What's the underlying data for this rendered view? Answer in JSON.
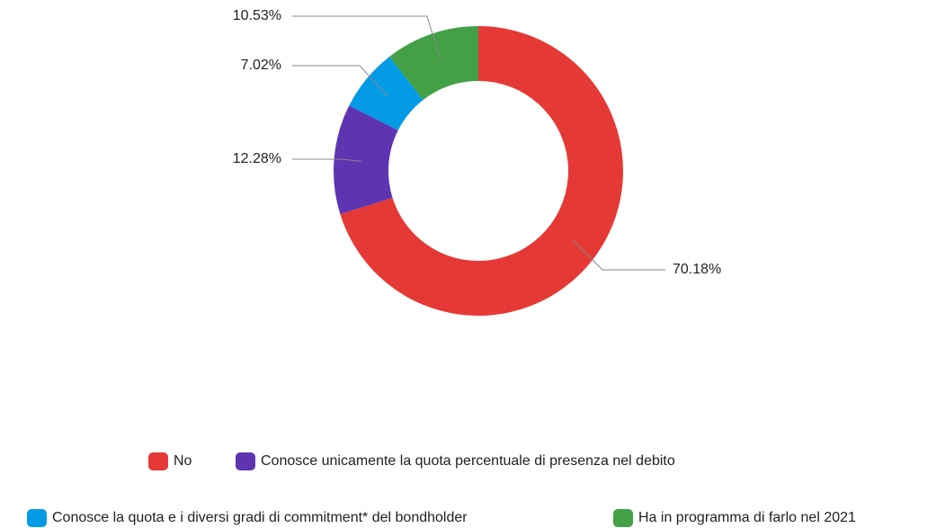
{
  "chart_data": {
    "type": "donut",
    "categories": [
      "No",
      "Conosce unicamente la quota percentuale di presenza nel debito",
      "Conosce la quota e i diversi gradi di commitment* del bondholder",
      "Ha in programma di farlo nel 2021"
    ],
    "values": [
      70.18,
      12.28,
      7.02,
      10.53
    ],
    "value_labels": [
      "70.18%",
      "12.28%",
      "7.02%",
      "10.53%"
    ],
    "colors": [
      "#e53935",
      "#5e35b1",
      "#039be5",
      "#43a047"
    ],
    "legend": "bottom"
  }
}
